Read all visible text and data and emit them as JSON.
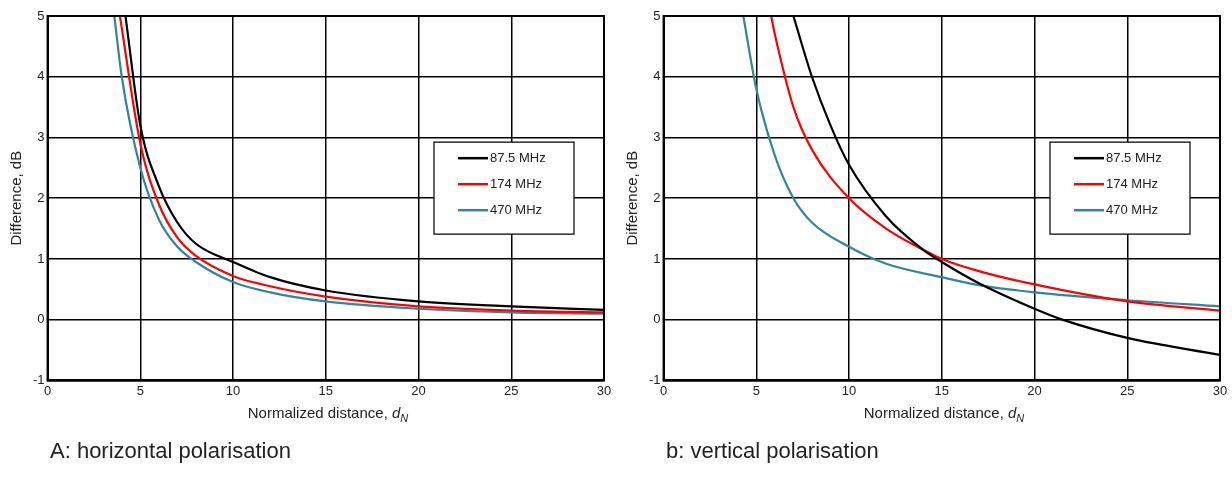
{
  "chart_data": [
    {
      "type": "line",
      "title": "A: horizontal polarisation",
      "xlabel": "Normalized distance, d$_{N}$",
      "ylabel": "Difference, dB",
      "xlim": [
        0,
        30
      ],
      "ylim": [
        -1,
        5
      ],
      "xticks": [
        0,
        5,
        10,
        15,
        20,
        25,
        30
      ],
      "yticks": [
        -1,
        0,
        1,
        2,
        3,
        4,
        5
      ],
      "grid": true,
      "legend": "right",
      "marker": "none",
      "line_style": "solid",
      "series": [
        {
          "name": "87.5 MHz",
          "color": "#000000",
          "x": [
            4.2,
            5,
            6,
            7,
            8,
            10,
            12,
            15,
            20,
            25,
            30
          ],
          "values": [
            5,
            3.2,
            2.2,
            1.6,
            1.25,
            0.95,
            0.7,
            0.48,
            0.3,
            0.22,
            0.16
          ]
        },
        {
          "name": "174 MHz",
          "color": "#ff0000",
          "x": [
            3.9,
            5,
            6,
            7,
            8,
            10,
            12,
            15,
            20,
            25,
            30
          ],
          "values": [
            5,
            2.9,
            1.9,
            1.35,
            1.05,
            0.72,
            0.55,
            0.38,
            0.22,
            0.15,
            0.12
          ]
        },
        {
          "name": "470 MHz",
          "color": "#31859c",
          "x": [
            3.6,
            4,
            5,
            6,
            7,
            8,
            10,
            12,
            15,
            20,
            25,
            30
          ],
          "values": [
            5,
            4.0,
            2.5,
            1.65,
            1.2,
            0.95,
            0.62,
            0.45,
            0.3,
            0.18,
            0.12,
            0.1
          ]
        }
      ]
    },
    {
      "type": "line",
      "title": "b: vertical polarisation",
      "xlabel": "Normalized distance, d$_{N}$",
      "ylabel": "Difference, dB",
      "xlim": [
        0,
        30
      ],
      "ylim": [
        -1,
        5
      ],
      "xticks": [
        0,
        5,
        10,
        15,
        20,
        25,
        30
      ],
      "yticks": [
        -1,
        0,
        1,
        2,
        3,
        4,
        5
      ],
      "grid": true,
      "legend": "right",
      "marker": "none",
      "line_style": "solid",
      "series": [
        {
          "name": "87.5 MHz",
          "color": "#000000",
          "x": [
            7,
            8,
            9,
            10,
            12,
            14,
            15,
            17,
            20,
            21.5,
            25,
            30
          ],
          "values": [
            5,
            4.0,
            3.2,
            2.55,
            1.7,
            1.15,
            0.95,
            0.6,
            0.18,
            0,
            -0.3,
            -0.58
          ]
        },
        {
          "name": "174 MHz",
          "color": "#ff0000",
          "x": [
            5.8,
            6,
            7,
            8,
            10,
            12,
            14,
            15,
            17,
            20,
            25,
            30
          ],
          "values": [
            5,
            4.7,
            3.5,
            2.8,
            2.0,
            1.5,
            1.15,
            1.0,
            0.8,
            0.58,
            0.3,
            0.15
          ]
        },
        {
          "name": "470 MHz",
          "color": "#31859c",
          "x": [
            4.3,
            5,
            6,
            7,
            8,
            10,
            12,
            15,
            17,
            20,
            25,
            30
          ],
          "values": [
            5,
            3.8,
            2.7,
            2.0,
            1.6,
            1.2,
            0.92,
            0.7,
            0.57,
            0.45,
            0.32,
            0.22
          ]
        }
      ]
    }
  ]
}
